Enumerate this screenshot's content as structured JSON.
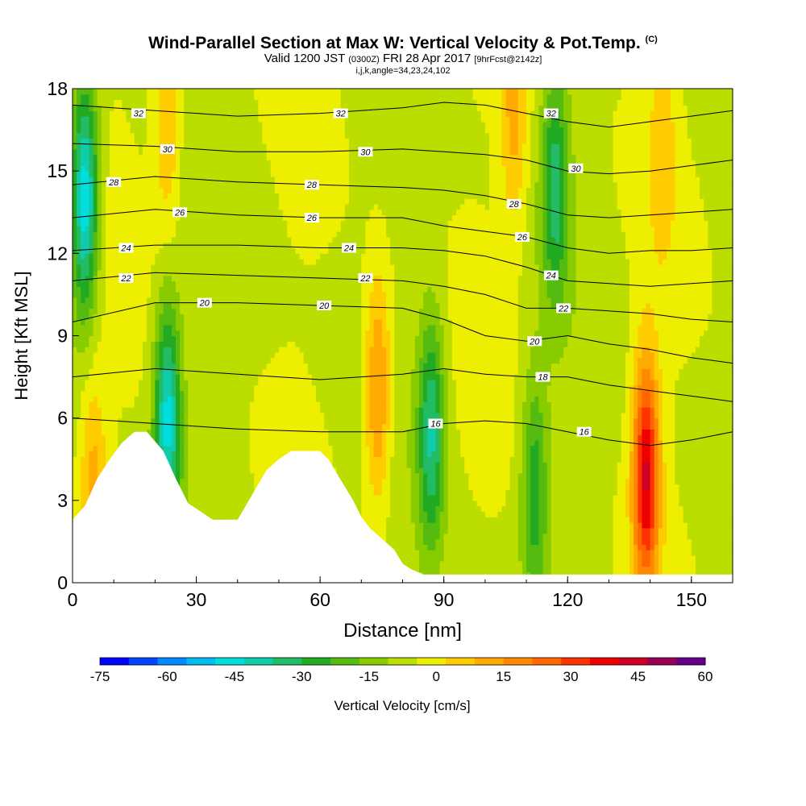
{
  "header": {
    "title": "Wind-Parallel Section at Max W: Vertical Velocity & Pot.Temp.",
    "copyright": "(C)",
    "valid_prefix": "Valid 1200 JST",
    "valid_utc": "(0300Z)",
    "valid_date": "FRI 28 Apr 2017",
    "forecast": "[9hrFcst@2142z]",
    "params": "i,j,k,angle=34,23,24,102"
  },
  "colors": {
    "scale": [
      "#0000ff",
      "#0044ff",
      "#0088ff",
      "#00bbee",
      "#00dddd",
      "#11ccaa",
      "#22bb66",
      "#22aa22",
      "#55bb11",
      "#88cc00",
      "#bbdd00",
      "#eeee00",
      "#ffcc00",
      "#ffaa00",
      "#ff8800",
      "#ff6600",
      "#ff3300",
      "#ee0000",
      "#cc0022",
      "#990055",
      "#660088"
    ],
    "terrain": "#ffffff",
    "contour": "#000000"
  },
  "chart_data": {
    "type": "heatmap",
    "xlabel": "Distance [nm]",
    "ylabel": "Height [Kft MSL]",
    "xlim": [
      0,
      160
    ],
    "ylim": [
      0,
      18
    ],
    "xticks": [
      0,
      30,
      60,
      90,
      120,
      150
    ],
    "yticks": [
      0,
      3,
      6,
      9,
      12,
      15,
      18
    ],
    "colorbar": {
      "label": "Vertical Velocity [cm/s]",
      "min": -75,
      "max": 60,
      "step": 7.5,
      "tick_values": [
        -75,
        -60,
        -45,
        -30,
        -15,
        0,
        15,
        30,
        45,
        60
      ],
      "tick_labels": [
        "-75",
        "-60",
        "-45",
        "-30",
        "-15",
        "0",
        "15",
        "30",
        "45",
        "60"
      ]
    },
    "terrain_profile": {
      "x": [
        0,
        3,
        6,
        9,
        12,
        15,
        18,
        22,
        25,
        28,
        31,
        34,
        37,
        40,
        47,
        50,
        53,
        56,
        60,
        62,
        64,
        66,
        68,
        70,
        72,
        75,
        78,
        80,
        82,
        85,
        160
      ],
      "height": [
        2.3,
        2.8,
        3.8,
        4.5,
        5.1,
        5.5,
        5.5,
        4.8,
        3.8,
        2.9,
        2.6,
        2.3,
        2.3,
        2.3,
        4.1,
        4.5,
        4.8,
        4.8,
        4.8,
        4.5,
        4.0,
        3.5,
        3.0,
        2.4,
        2.0,
        1.6,
        1.2,
        0.7,
        0.5,
        0.3,
        0.3
      ]
    },
    "updraft_cores": [
      {
        "x": 23,
        "z": 17.0,
        "w": 25
      },
      {
        "x": 74,
        "z": 7.0,
        "w": 35
      },
      {
        "x": 107,
        "z": 17.0,
        "w": 25
      },
      {
        "x": 139,
        "z": 4.0,
        "w": 60
      },
      {
        "x": 5,
        "z": 3.5,
        "w": 25
      },
      {
        "x": 143,
        "z": 16.0,
        "w": 18
      }
    ],
    "downdraft_cores": [
      {
        "x": 3,
        "z": 14.0,
        "w": -45
      },
      {
        "x": 23,
        "z": 6.0,
        "w": -40
      },
      {
        "x": 87,
        "z": 5.5,
        "w": -30
      },
      {
        "x": 117,
        "z": 14.5,
        "w": -25
      },
      {
        "x": 112,
        "z": 3.5,
        "w": -20
      }
    ],
    "theta_contours": {
      "series": [
        {
          "name": "16",
          "x": [
            0,
            20,
            40,
            60,
            80,
            90,
            100,
            110,
            120,
            130,
            140,
            150,
            160
          ],
          "z": [
            6.0,
            5.8,
            5.6,
            5.5,
            5.5,
            5.8,
            5.9,
            5.8,
            5.5,
            5.2,
            5.0,
            5.2,
            5.5
          ]
        },
        {
          "name": "18",
          "x": [
            0,
            20,
            40,
            60,
            80,
            90,
            100,
            110,
            120,
            130,
            140,
            150,
            160
          ],
          "z": [
            7.5,
            7.8,
            7.6,
            7.4,
            7.6,
            7.8,
            7.6,
            7.5,
            7.5,
            7.2,
            7.0,
            6.8,
            6.6
          ]
        },
        {
          "name": "20",
          "x": [
            0,
            20,
            40,
            60,
            80,
            90,
            100,
            110,
            120,
            130,
            140,
            150,
            160
          ],
          "z": [
            9.5,
            10.2,
            10.2,
            10.1,
            10.0,
            9.6,
            9.0,
            8.8,
            9.0,
            8.7,
            8.5,
            8.2,
            8.0
          ]
        },
        {
          "name": "22",
          "x": [
            0,
            20,
            40,
            60,
            80,
            90,
            100,
            110,
            120,
            130,
            140,
            150,
            160
          ],
          "z": [
            11.0,
            11.3,
            11.2,
            11.1,
            11.0,
            10.8,
            10.5,
            10.0,
            10.0,
            9.9,
            9.8,
            9.6,
            9.5
          ]
        },
        {
          "name": "24",
          "x": [
            0,
            20,
            40,
            60,
            80,
            90,
            100,
            110,
            120,
            130,
            140,
            150,
            160
          ],
          "z": [
            12.1,
            12.3,
            12.3,
            12.2,
            12.2,
            12.1,
            11.9,
            11.5,
            11.0,
            10.9,
            10.8,
            10.9,
            11.0
          ]
        },
        {
          "name": "26",
          "x": [
            0,
            20,
            40,
            60,
            80,
            90,
            100,
            110,
            120,
            130,
            140,
            150,
            160
          ],
          "z": [
            13.3,
            13.6,
            13.4,
            13.3,
            13.3,
            13.0,
            12.8,
            12.6,
            12.2,
            12.0,
            12.1,
            12.1,
            12.2
          ]
        },
        {
          "name": "28",
          "x": [
            0,
            20,
            40,
            60,
            80,
            90,
            100,
            110,
            120,
            130,
            140,
            150,
            160
          ],
          "z": [
            14.5,
            14.8,
            14.6,
            14.5,
            14.4,
            14.3,
            14.1,
            13.8,
            13.4,
            13.3,
            13.4,
            13.5,
            13.6
          ]
        },
        {
          "name": "30",
          "x": [
            0,
            20,
            40,
            60,
            80,
            90,
            100,
            110,
            120,
            130,
            140,
            150,
            160
          ],
          "z": [
            16.0,
            15.9,
            15.7,
            15.7,
            15.8,
            15.7,
            15.6,
            15.4,
            15.0,
            14.9,
            15.0,
            15.2,
            15.4
          ]
        },
        {
          "name": "32",
          "x": [
            0,
            20,
            40,
            60,
            80,
            90,
            100,
            110,
            120,
            130,
            140,
            150,
            160
          ],
          "z": [
            17.4,
            17.2,
            17.0,
            17.1,
            17.3,
            17.5,
            17.4,
            17.1,
            16.8,
            16.6,
            16.8,
            17.0,
            17.2
          ]
        }
      ],
      "labels": [
        {
          "text": "32",
          "x": 16,
          "z": 17.1
        },
        {
          "text": "30",
          "x": 23,
          "z": 15.8
        },
        {
          "text": "28",
          "x": 10,
          "z": 14.6
        },
        {
          "text": "26",
          "x": 26,
          "z": 13.5
        },
        {
          "text": "24",
          "x": 13,
          "z": 12.2
        },
        {
          "text": "22",
          "x": 13,
          "z": 11.1
        },
        {
          "text": "20",
          "x": 32,
          "z": 10.2
        },
        {
          "text": "32",
          "x": 65,
          "z": 17.1
        },
        {
          "text": "30",
          "x": 71,
          "z": 15.7
        },
        {
          "text": "28",
          "x": 58,
          "z": 14.5
        },
        {
          "text": "26",
          "x": 58,
          "z": 13.3
        },
        {
          "text": "24",
          "x": 67,
          "z": 12.2
        },
        {
          "text": "22",
          "x": 71,
          "z": 11.1
        },
        {
          "text": "20",
          "x": 61,
          "z": 10.1
        },
        {
          "text": "32",
          "x": 116,
          "z": 17.1
        },
        {
          "text": "30",
          "x": 122,
          "z": 15.1
        },
        {
          "text": "28",
          "x": 107,
          "z": 13.8
        },
        {
          "text": "26",
          "x": 109,
          "z": 12.6
        },
        {
          "text": "24",
          "x": 116,
          "z": 11.2
        },
        {
          "text": "22",
          "x": 119,
          "z": 10.0
        },
        {
          "text": "20",
          "x": 112,
          "z": 8.8
        },
        {
          "text": "18",
          "x": 114,
          "z": 7.5
        },
        {
          "text": "16",
          "x": 88,
          "z": 5.8
        },
        {
          "text": "16",
          "x": 124,
          "z": 5.5
        }
      ]
    }
  }
}
